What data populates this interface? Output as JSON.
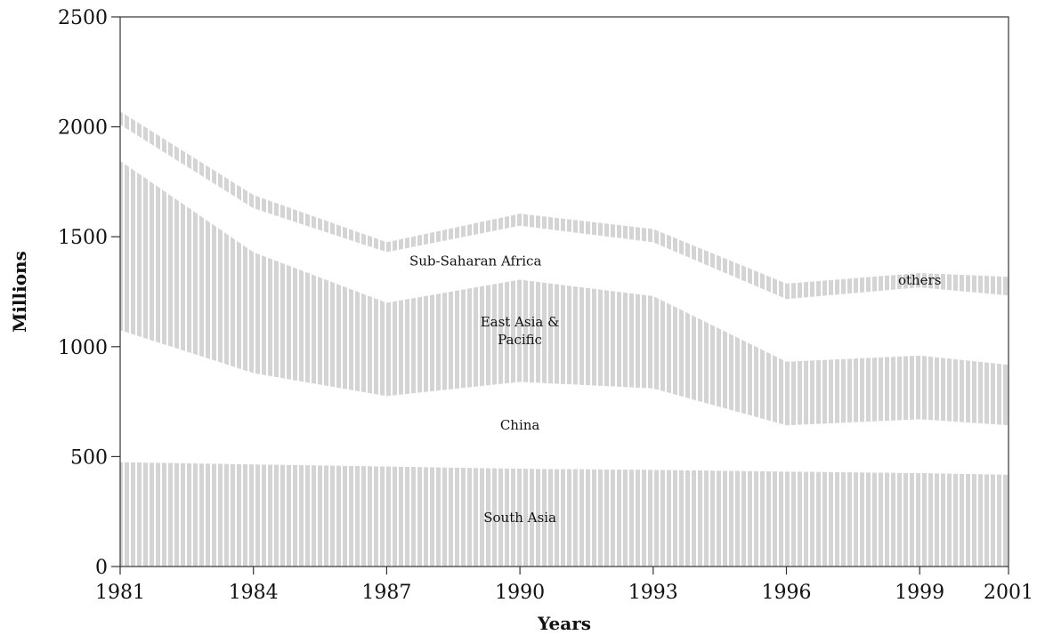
{
  "chart_data": {
    "type": "area",
    "title": "",
    "xlabel": "Years",
    "ylabel": "Millions",
    "x": [
      1981,
      1984,
      1987,
      1990,
      1993,
      1996,
      1999,
      2001
    ],
    "xlim": [
      1981,
      2001
    ],
    "ylim": [
      0,
      2500
    ],
    "yticks": [
      0,
      500,
      1000,
      1500,
      2000,
      2500
    ],
    "grid": false,
    "legend": "none",
    "stacked": true,
    "series": [
      {
        "name": "South Asia",
        "values": [
          475,
          465,
          455,
          445,
          440,
          432,
          425,
          418
        ],
        "style": "hatched",
        "label_line": [
          "South Asia"
        ]
      },
      {
        "name": "China",
        "values": [
          600,
          415,
          320,
          395,
          370,
          210,
          245,
          225
        ],
        "style": "plain",
        "label_line": [
          "China"
        ]
      },
      {
        "name": "East Asia & Pacific",
        "values": [
          770,
          550,
          425,
          465,
          420,
          290,
          290,
          275
        ],
        "style": "hatched",
        "label_line": [
          "East Asia &",
          "Pacific"
        ]
      },
      {
        "name": "Sub-Saharan Africa",
        "values": [
          165,
          200,
          230,
          245,
          245,
          285,
          310,
          315
        ],
        "style": "plain",
        "label_line": [
          "Sub-Saharan Africa"
        ]
      },
      {
        "name": "others",
        "values": [
          60,
          60,
          45,
          55,
          60,
          70,
          65,
          85
        ],
        "style": "hatched",
        "label_line": [
          "others"
        ]
      }
    ],
    "colors": {
      "fill": "#d4d4d4",
      "hatch": "#ffffff",
      "axis": "#333333",
      "background": "#ffffff"
    }
  }
}
